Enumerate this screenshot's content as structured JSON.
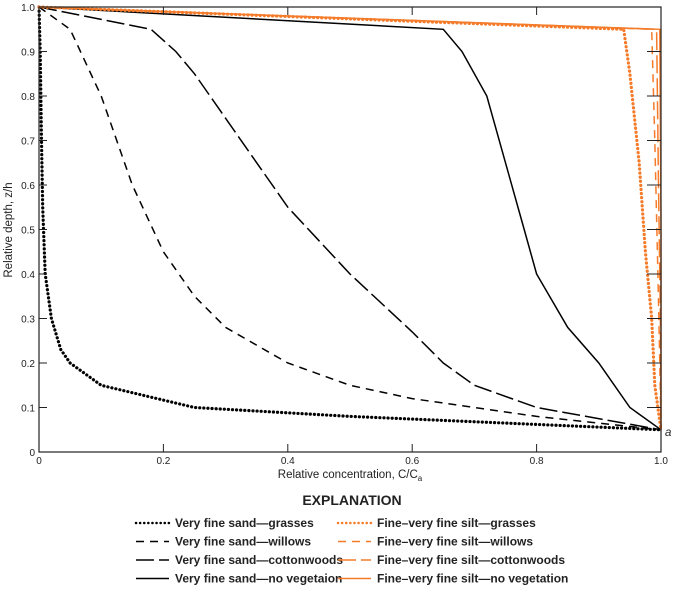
{
  "chart_data": {
    "type": "line",
    "xlabel": "Relative concentration, C/C",
    "xlabel_sub": "a",
    "ylabel": "Relative depth, z/h",
    "xlim": [
      0,
      1
    ],
    "ylim": [
      0,
      1
    ],
    "xticks": [
      "0",
      "0.2",
      "0.4",
      "0.6",
      "0.8",
      "1.0"
    ],
    "yticks": [
      "0",
      "0.1",
      "0.2",
      "0.3",
      "0.4",
      "0.5",
      "0.6",
      "0.7",
      "0.8",
      "0.9",
      "1.0"
    ],
    "annotation": "a",
    "legend_title": "EXPLANATION",
    "legend_placement": "bottom",
    "colors": {
      "sand": "#000000",
      "silt": "#f47b2a"
    },
    "series": [
      {
        "name": "Very fine sand—grasses",
        "style": "dotted",
        "group": "sand",
        "points": [
          [
            0,
            1
          ],
          [
            0.002,
            0.9
          ],
          [
            0.004,
            0.7
          ],
          [
            0.006,
            0.55
          ],
          [
            0.01,
            0.4
          ],
          [
            0.02,
            0.3
          ],
          [
            0.035,
            0.23
          ],
          [
            0.05,
            0.2
          ],
          [
            0.1,
            0.15
          ],
          [
            0.25,
            0.1
          ],
          [
            0.5,
            0.08
          ],
          [
            0.75,
            0.065
          ],
          [
            1,
            0.05
          ]
        ]
      },
      {
        "name": "Very fine sand—willows",
        "style": "dashed",
        "group": "sand",
        "points": [
          [
            0,
            1
          ],
          [
            0.05,
            0.95
          ],
          [
            0.1,
            0.8
          ],
          [
            0.15,
            0.6
          ],
          [
            0.2,
            0.45
          ],
          [
            0.25,
            0.35
          ],
          [
            0.3,
            0.28
          ],
          [
            0.4,
            0.2
          ],
          [
            0.5,
            0.15
          ],
          [
            0.6,
            0.12
          ],
          [
            0.8,
            0.08
          ],
          [
            1,
            0.05
          ]
        ]
      },
      {
        "name": "Very fine sand—cottonwoods",
        "style": "longdash",
        "group": "sand",
        "points": [
          [
            0,
            1
          ],
          [
            0.18,
            0.95
          ],
          [
            0.22,
            0.9
          ],
          [
            0.25,
            0.85
          ],
          [
            0.3,
            0.75
          ],
          [
            0.4,
            0.55
          ],
          [
            0.5,
            0.4
          ],
          [
            0.6,
            0.27
          ],
          [
            0.65,
            0.2
          ],
          [
            0.7,
            0.15
          ],
          [
            0.8,
            0.1
          ],
          [
            1,
            0.05
          ]
        ]
      },
      {
        "name": "Very fine sand—no vegetaion",
        "style": "solid",
        "group": "sand",
        "points": [
          [
            0,
            1
          ],
          [
            0.65,
            0.95
          ],
          [
            0.68,
            0.9
          ],
          [
            0.72,
            0.8
          ],
          [
            0.75,
            0.65
          ],
          [
            0.78,
            0.5
          ],
          [
            0.8,
            0.4
          ],
          [
            0.85,
            0.28
          ],
          [
            0.9,
            0.2
          ],
          [
            0.95,
            0.1
          ],
          [
            1,
            0.05
          ]
        ]
      },
      {
        "name": "Fine–very fine silt—grasses",
        "style": "dotted",
        "group": "silt",
        "points": [
          [
            0,
            1
          ],
          [
            0.94,
            0.95
          ],
          [
            0.95,
            0.85
          ],
          [
            0.965,
            0.65
          ],
          [
            0.975,
            0.45
          ],
          [
            0.985,
            0.3
          ],
          [
            0.99,
            0.15
          ],
          [
            1,
            0.05
          ]
        ]
      },
      {
        "name": "Fine–very fine silt—willows",
        "style": "dashed",
        "group": "silt",
        "points": [
          [
            0,
            1
          ],
          [
            0.985,
            0.95
          ],
          [
            0.99,
            0.7
          ],
          [
            0.995,
            0.4
          ],
          [
            0.998,
            0.2
          ],
          [
            1,
            0.05
          ]
        ]
      },
      {
        "name": "Fine–very fine silt—cottonwoods",
        "style": "longdash",
        "group": "silt",
        "points": [
          [
            0,
            1
          ],
          [
            0.993,
            0.95
          ],
          [
            0.996,
            0.6
          ],
          [
            0.999,
            0.3
          ],
          [
            1,
            0.05
          ]
        ]
      },
      {
        "name": "Fine–very fine silt—no vegetation",
        "style": "solid",
        "group": "silt",
        "points": [
          [
            0,
            1
          ],
          [
            0.998,
            0.95
          ],
          [
            1,
            0.5
          ],
          [
            1,
            0.05
          ]
        ]
      }
    ]
  }
}
